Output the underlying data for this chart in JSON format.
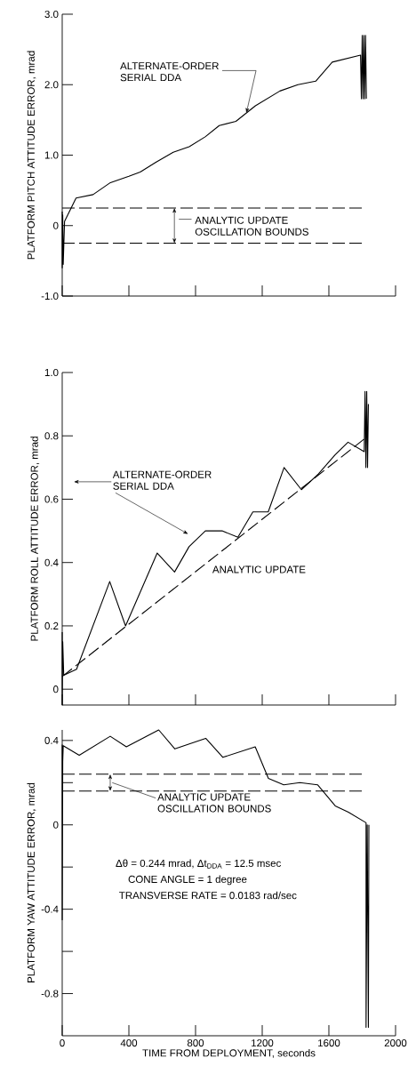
{
  "chart_data": [
    {
      "type": "line",
      "ylabel": "PLATFORM PITCH ATTITUDE ERROR, mrad",
      "xlim": [
        0,
        2000
      ],
      "ylim": [
        -1,
        3
      ],
      "tick_labels": "y",
      "xticks": [
        {
          "value": 0,
          "label": null
        },
        {
          "value": 400,
          "label": null
        },
        {
          "value": 800,
          "label": null
        },
        {
          "value": 1200,
          "label": null
        },
        {
          "value": 1600,
          "label": null
        },
        {
          "value": 2000,
          "label": null
        }
      ],
      "yticks": [
        {
          "value": -1,
          "label": "-1.0"
        },
        0,
        {
          "value": 1,
          "label": "1.0"
        },
        {
          "value": 2,
          "label": "2.0"
        },
        {
          "value": 3,
          "label": "3.0"
        }
      ],
      "series": [
        {
          "name": "ALTERNATE-ORDER SERIAL DDA",
          "color": "#000000",
          "x": [
            0,
            0,
            3,
            6,
            14,
            83,
            185,
            289,
            400,
            468,
            562,
            666,
            762,
            858,
            942,
            1042,
            1159,
            1306,
            1414,
            1521,
            1620,
            1790,
            1795,
            1800,
            1805,
            1810,
            1815,
            1820,
            1825
          ],
          "values": [
            0.2,
            -0.6,
            0.15,
            -0.55,
            0.06,
            0.39,
            0.44,
            0.61,
            0.7,
            0.76,
            0.9,
            1.04,
            1.12,
            1.26,
            1.42,
            1.48,
            1.7,
            1.91,
            2.0,
            2.05,
            2.32,
            2.42,
            1.8,
            2.7,
            1.8,
            2.7,
            1.8,
            2.7,
            1.8
          ]
        }
      ],
      "ref_lines": [
        {
          "axis": "y",
          "value": 0.25,
          "line_style": "dashed"
        },
        {
          "axis": "y",
          "value": -0.25,
          "line_style": "dashed"
        }
      ],
      "annotations": [
        "ANALYTIC UPDATE OSCILLATION BOUNDS"
      ]
    },
    {
      "type": "line",
      "ylabel": "PLATFORM ROLL ATTITUDE ERROR, mrad",
      "xlim": [
        0,
        2000
      ],
      "ylim": [
        -0.05,
        1.0
      ],
      "tick_labels": "y",
      "xticks": [
        {
          "value": 0,
          "label": null
        },
        {
          "value": 400,
          "label": null
        },
        {
          "value": 800,
          "label": null
        },
        {
          "value": 1200,
          "label": null
        },
        {
          "value": 1600,
          "label": null
        },
        {
          "value": 2000,
          "label": null
        }
      ],
      "yticks": [
        0,
        0.2,
        0.4,
        0.6,
        0.8,
        {
          "value": 1,
          "label": "1.0"
        }
      ],
      "series": [
        {
          "name": "ALTERNATE-ORDER SERIAL DDA",
          "color": "#000000",
          "x": [
            0,
            0,
            3,
            9,
            86,
            285,
            380,
            570,
            674,
            761,
            859,
            959,
            1054,
            1144,
            1236,
            1331,
            1435,
            1538,
            1637,
            1715,
            1812,
            1817,
            1822,
            1827,
            1832,
            1837
          ],
          "values": [
            0.18,
            -0.05,
            0.15,
            0.044,
            0.063,
            0.34,
            0.2,
            0.43,
            0.37,
            0.45,
            0.5,
            0.5,
            0.48,
            0.56,
            0.56,
            0.7,
            0.63,
            0.68,
            0.74,
            0.78,
            0.75,
            0.94,
            0.7,
            0.94,
            0.7,
            0.9
          ]
        },
        {
          "name": "ANALYTIC UPDATE",
          "color": "#000000",
          "line_style": "dashed",
          "x": [
            0,
            1812
          ],
          "values": [
            0.04,
            0.79
          ]
        }
      ]
    },
    {
      "type": "line",
      "xlabel": "TIME FROM DEPLOYMENT, seconds",
      "ylabel": "PLATFORM YAW ATTITUDE ERROR, mrad",
      "xlim": [
        0,
        2000
      ],
      "ylim": [
        -1.0,
        0.45
      ],
      "xticks": [
        0,
        400,
        800,
        1200,
        1600,
        2000
      ],
      "yticks": [
        {
          "value": -0.8,
          "label": "-0.8"
        },
        {
          "value": -0.6,
          "label": null
        },
        {
          "value": -0.4,
          "label": "-0.4"
        },
        {
          "value": -0.2,
          "label": null
        },
        0,
        {
          "value": 0.2,
          "label": null
        },
        {
          "value": 0.4,
          "label": "0.4"
        }
      ],
      "series": [
        {
          "color": "#000000",
          "x": [
            0,
            0,
            3,
            6,
            102,
            288,
            385,
            579,
            676,
            861,
            964,
            1158,
            1237,
            1329,
            1426,
            1532,
            1638,
            1717,
            1823,
            1823,
            1830,
            1837,
            1840
          ],
          "values": [
            0.38,
            -0.45,
            0.3,
            0.375,
            0.33,
            0.42,
            0.37,
            0.45,
            0.36,
            0.41,
            0.32,
            0.37,
            0.22,
            0.19,
            0.2,
            0.19,
            0.09,
            0.06,
            0.01,
            -0.96,
            0.0,
            -0.96,
            0.0
          ]
        }
      ],
      "ref_lines": [
        {
          "axis": "y",
          "value": 0.24,
          "line_style": "dashed"
        },
        {
          "axis": "y",
          "value": 0.16,
          "line_style": "dashed"
        }
      ],
      "annotations": [
        "ANALYTIC UPDATE OSCILLATION BOUNDS",
        "Δθ = 0.244 mrad, Δt$_{DDA}$ = 12.5 msec",
        "CONE ANGLE = 1 degree",
        "TRANSVERSE RATE = 0.0183 rad/sec"
      ]
    }
  ]
}
